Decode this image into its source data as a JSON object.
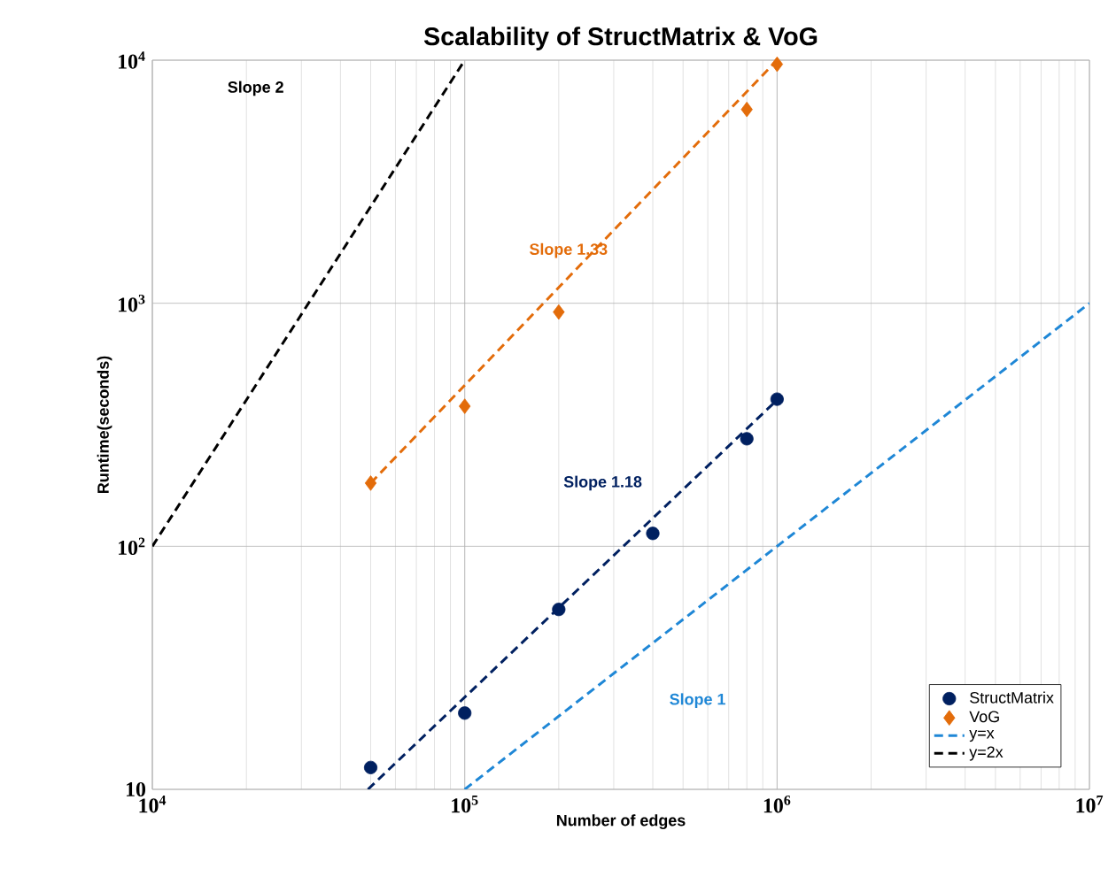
{
  "chart_data": {
    "type": "scatter",
    "title": "Scalability of StructMatrix & VoG",
    "xlabel": "Number of edges",
    "ylabel": "Runtime(seconds)",
    "log": "xy",
    "grid": true,
    "legend": "bottom right",
    "xlim": [
      10000,
      10000000
    ],
    "ylim": [
      10,
      10000
    ],
    "xticks": [
      {
        "value": 10000,
        "label": "10$^{4}$"
      },
      {
        "value": 100000,
        "label": "10$^{5}$"
      },
      {
        "value": 1000000,
        "label": "10$^{6}$"
      },
      {
        "value": 10000000,
        "label": "10$^{7}$"
      }
    ],
    "yticks": [
      10,
      {
        "value": 100,
        "label": "10$^{2}$"
      },
      {
        "value": 1000,
        "label": "10$^{3}$"
      },
      {
        "value": 10000,
        "label": "10$^{4}$"
      }
    ],
    "series": [
      {
        "name": "StructMatrix",
        "type": "scatter",
        "marker": "circle",
        "color": "#002060",
        "x": [
          50000,
          100000,
          200000,
          400000,
          800000,
          1000000
        ],
        "values": [
          12.3,
          20.6,
          55,
          113,
          277,
          403
        ]
      },
      {
        "name": "VoG",
        "type": "scatter",
        "marker": "diamond",
        "color": "#e36c0a",
        "x": [
          50000,
          100000,
          200000,
          800000,
          1000000
        ],
        "values": [
          182,
          377,
          920,
          6270,
          9620
        ]
      },
      {
        "name": "y=x",
        "type": "line",
        "line_style": "dashed",
        "color": "#1f87d6",
        "x": [
          100000,
          10000000
        ],
        "values": [
          10,
          1000
        ]
      },
      {
        "name": "y=2x",
        "type": "line",
        "line_style": "dashed",
        "color": "#000000",
        "x": [
          10000,
          100000
        ],
        "values": [
          100,
          10000
        ]
      },
      {
        "type": "line",
        "line_style": "dashed",
        "color": "#002060",
        "x": [
          49000,
          1000000
        ],
        "values": [
          10,
          400
        ]
      },
      {
        "type": "line",
        "line_style": "dashed",
        "color": "#e36c0a",
        "x": [
          50000,
          1000000
        ],
        "values": [
          182,
          10000
        ]
      }
    ],
    "annotations": [
      "Slope 2",
      "Slope 1.33",
      "Slope 1.18",
      "Slope 1"
    ]
  }
}
